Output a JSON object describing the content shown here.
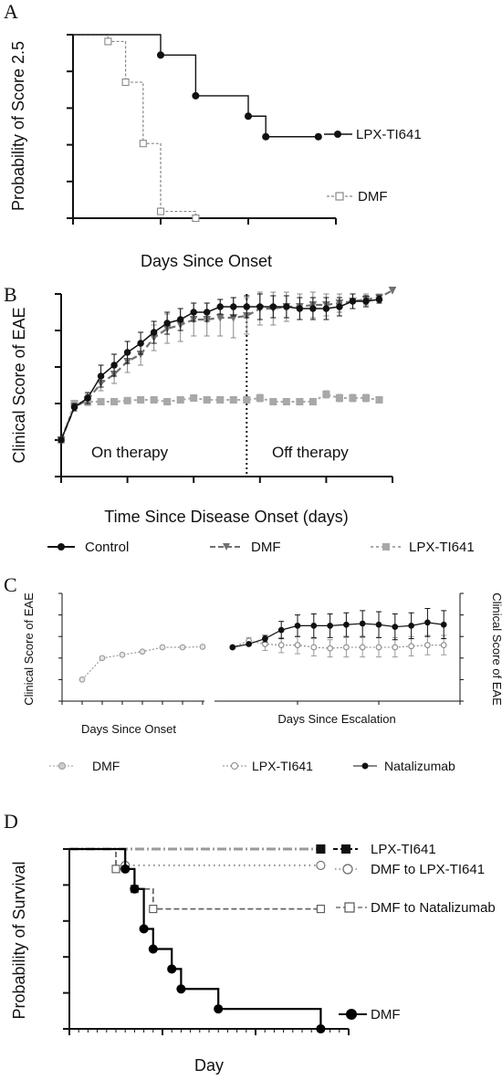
{
  "chart_data": [
    {
      "panel": "A",
      "type": "line",
      "xlabel": "Days Since Onset",
      "ylabel": "Probability of Score 2.5",
      "xlim": [
        0,
        15
      ],
      "ylim": [
        0,
        100
      ],
      "xticks": [
        "0",
        "5",
        "10",
        "15"
      ],
      "yticks": [
        "0",
        "20",
        "40",
        "60",
        "80",
        "100"
      ],
      "legend_placement": "right",
      "series": [
        {
          "name": "LPX-TI641",
          "color": "#111111",
          "x": [
            0,
            5,
            7,
            10,
            11,
            14
          ],
          "y": [
            100,
            88.9,
            66.7,
            55.6,
            44.4,
            44.4
          ]
        },
        {
          "name": "DMF",
          "color": "#888888",
          "x": [
            0,
            2,
            3,
            4,
            5,
            7
          ],
          "y": [
            100,
            96.3,
            74.1,
            40.7,
            3.7,
            0
          ]
        }
      ]
    },
    {
      "panel": "B",
      "type": "line",
      "xlabel": "Time Since Disease Onset (days)",
      "ylabel": "Clinical Score of EAE",
      "xlim": [
        0,
        25
      ],
      "ylim": [
        0,
        5
      ],
      "xticks": [
        "0",
        "5",
        "10",
        "15",
        "20",
        "25"
      ],
      "yticks": [
        "0",
        "1",
        "2",
        "3",
        "4",
        "5"
      ],
      "annotations": [
        "On therapy",
        "Off therapy"
      ],
      "therapy_end_day": 14,
      "legend_placement": "bottom",
      "series": [
        {
          "name": "Control",
          "color": "#111111",
          "x": [
            0,
            1,
            2,
            3,
            4,
            5,
            6,
            7,
            8,
            9,
            10,
            11,
            12,
            13,
            14,
            15,
            16,
            17,
            18,
            19,
            20,
            21,
            22,
            23,
            24
          ],
          "y": [
            1.0,
            1.9,
            2.15,
            2.75,
            3.05,
            3.4,
            3.65,
            3.95,
            4.2,
            4.3,
            4.5,
            4.5,
            4.65,
            4.65,
            4.65,
            4.65,
            4.65,
            4.65,
            4.6,
            4.6,
            4.6,
            4.65,
            4.8,
            4.8,
            4.85
          ],
          "err": [
            0,
            0.1,
            0.15,
            0.3,
            0.3,
            0.3,
            0.3,
            0.3,
            0.3,
            0.3,
            0.25,
            0.25,
            0.2,
            0.25,
            0.3,
            0.35,
            0.3,
            0.3,
            0.3,
            0.3,
            0.3,
            0.25,
            0.2,
            0.15,
            0.1
          ]
        },
        {
          "name": "DMF",
          "color": "#707070",
          "x": [
            0,
            1,
            2,
            3,
            4,
            5,
            6,
            7,
            8,
            9,
            10,
            11,
            12,
            13,
            14,
            15,
            16,
            17,
            18,
            19,
            20,
            21,
            22,
            23,
            24,
            25
          ],
          "y": [
            1.0,
            1.9,
            2.1,
            2.55,
            2.8,
            3.15,
            3.35,
            3.8,
            4.05,
            4.15,
            4.3,
            4.3,
            4.35,
            4.35,
            4.4,
            4.6,
            4.6,
            4.65,
            4.65,
            4.7,
            4.7,
            4.75,
            4.8,
            4.85,
            4.9,
            5.1
          ],
          "err": [
            0,
            0.1,
            0.15,
            0.2,
            0.25,
            0.3,
            0.3,
            0.35,
            0.4,
            0.45,
            0.45,
            0.45,
            0.5,
            0.55,
            0.5,
            0.45,
            0.45,
            0.4,
            0.35,
            0.35,
            0.3,
            0.25,
            0.2,
            0.15,
            0.1,
            0
          ]
        },
        {
          "name": "LPX-TI641",
          "color": "#a8a8a8",
          "x": [
            0,
            1,
            2,
            3,
            4,
            5,
            6,
            7,
            8,
            9,
            10,
            11,
            12,
            13,
            14,
            15,
            16,
            17,
            18,
            19,
            20,
            21,
            22,
            23,
            24
          ],
          "y": [
            1.0,
            2.0,
            2.05,
            2.05,
            2.05,
            2.08,
            2.1,
            2.1,
            2.05,
            2.1,
            2.15,
            2.1,
            2.1,
            2.1,
            2.1,
            2.15,
            2.05,
            2.05,
            2.05,
            2.05,
            2.25,
            2.15,
            2.15,
            2.15,
            2.1
          ],
          "err": [
            0,
            0.05,
            0.05,
            0.05,
            0.05,
            0.05,
            0.05,
            0.05,
            0.05,
            0.05,
            0.05,
            0.05,
            0.05,
            0.05,
            0.05,
            0.1,
            0.05,
            0.05,
            0.05,
            0.05,
            0.1,
            0.1,
            0.1,
            0.1,
            0.05
          ]
        }
      ]
    },
    {
      "panel": "C-left",
      "type": "line",
      "xlabel": "Days Since Onset",
      "ylabel": "Clinical Score of EAE",
      "xlim": [
        0,
        7
      ],
      "ylim": [
        0,
        5
      ],
      "xticks": [
        "0",
        "1",
        "2",
        "3",
        "4",
        "5",
        "6",
        "7"
      ],
      "yticks": [
        "0",
        "1",
        "2",
        "3",
        "4",
        "5"
      ],
      "series": [
        {
          "name": "DMF",
          "color": "#999999",
          "x": [
            1,
            2,
            3,
            4,
            5,
            6,
            7
          ],
          "y": [
            1.0,
            2.0,
            2.15,
            2.3,
            2.5,
            2.5,
            2.52
          ]
        }
      ]
    },
    {
      "panel": "C-right",
      "type": "line",
      "xlabel": "Days Since Escalation",
      "ylabel": "Clinical Score of EAE",
      "xlim": [
        0,
        15
      ],
      "ylim": [
        0,
        5
      ],
      "xticks": [
        "5",
        "10",
        "15"
      ],
      "yticks": [
        "0",
        "1",
        "2",
        "3",
        "4",
        "5"
      ],
      "legend_placement": "bottom",
      "series": [
        {
          "name": "LPX-TI641",
          "color": "#888888",
          "x": [
            1,
            2,
            3,
            4,
            5,
            6,
            7,
            8,
            9,
            10,
            11,
            12,
            13,
            14
          ],
          "y": [
            2.5,
            2.8,
            2.65,
            2.6,
            2.6,
            2.5,
            2.45,
            2.5,
            2.5,
            2.5,
            2.5,
            2.55,
            2.6,
            2.6
          ],
          "err": [
            0,
            0.15,
            0.3,
            0.35,
            0.4,
            0.4,
            0.4,
            0.45,
            0.45,
            0.45,
            0.45,
            0.45,
            0.45,
            0.45
          ]
        },
        {
          "name": "Natalizumab",
          "color": "#111111",
          "x": [
            1,
            2,
            3,
            4,
            5,
            6,
            7,
            8,
            9,
            10,
            11,
            12,
            13,
            14
          ],
          "y": [
            2.5,
            2.65,
            2.9,
            3.3,
            3.5,
            3.5,
            3.5,
            3.55,
            3.6,
            3.55,
            3.45,
            3.5,
            3.65,
            3.55
          ],
          "err": [
            0,
            0.05,
            0.15,
            0.4,
            0.5,
            0.55,
            0.55,
            0.55,
            0.6,
            0.6,
            0.6,
            0.6,
            0.65,
            0.65
          ]
        }
      ]
    },
    {
      "panel": "D",
      "type": "line",
      "xlabel": "Day",
      "ylabel": "Probability of Survival",
      "xlim": [
        0,
        30
      ],
      "ylim": [
        0,
        100
      ],
      "xticks": [
        "0",
        "10",
        "20",
        "30"
      ],
      "yticks": [
        "0",
        "20",
        "40",
        "60",
        "80",
        "100"
      ],
      "legend_placement": "right",
      "series": [
        {
          "name": "LPX-TI641",
          "color": "#9a9a9a",
          "x": [
            0,
            27
          ],
          "y": [
            100,
            100
          ]
        },
        {
          "name": "DMF to LPX-TI641",
          "color": "#888888",
          "x": [
            0,
            6,
            27
          ],
          "y": [
            100,
            90.9,
            90.9
          ]
        },
        {
          "name": "DMF to Natalizumab",
          "color": "#666666",
          "x": [
            0,
            5,
            7,
            9,
            27
          ],
          "y": [
            100,
            88.9,
            77.8,
            66.7,
            66.7
          ]
        },
        {
          "name": "DMF",
          "color": "#000000",
          "x": [
            0,
            6,
            7,
            8,
            9,
            11,
            12,
            16,
            27
          ],
          "y": [
            100,
            88.9,
            77.8,
            55.6,
            44.4,
            33.3,
            22.2,
            11.1,
            0
          ]
        }
      ]
    }
  ],
  "panel_labels": [
    "A",
    "B",
    "C",
    "D"
  ]
}
